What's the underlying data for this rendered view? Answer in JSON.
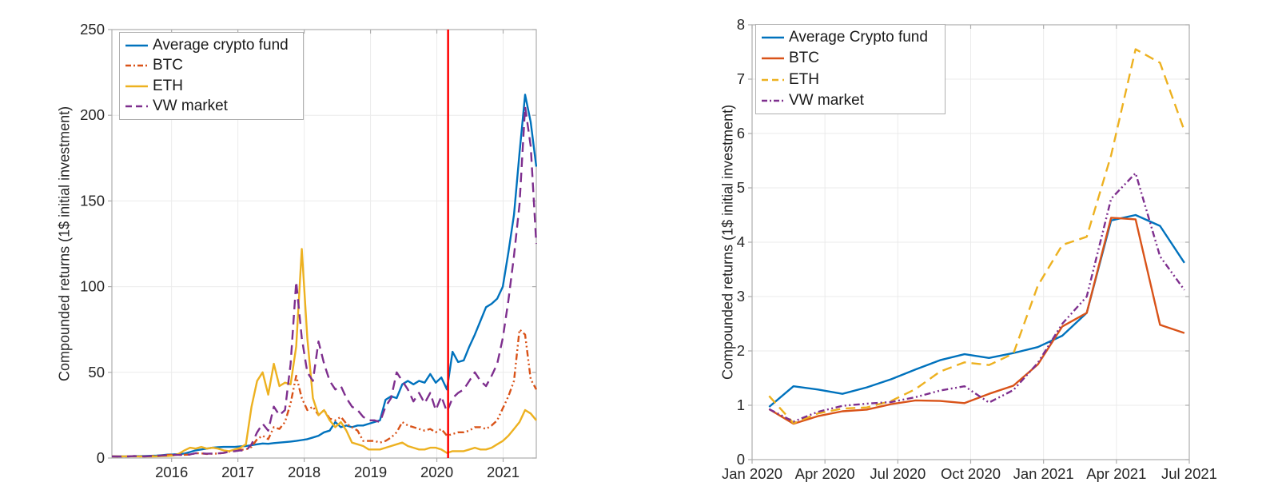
{
  "window": {
    "background": "#ffffff"
  },
  "palette": {
    "fund_blue": "#0072BD",
    "btc_orange": "#D95319",
    "eth_yellow": "#EDB120",
    "vw_purple": "#7E2F8E",
    "event_red": "#FF0000",
    "grid_gray": "#EBEBEB",
    "axis_gray": "#ADADAD",
    "text_dark": "#262626"
  },
  "chart_data": [
    {
      "id": "full-history",
      "type": "line",
      "title": "",
      "xlabel": "",
      "ylabel": "Compounded returns (1$ initial investment)",
      "xlim": [
        2015.1,
        2021.5
      ],
      "ylim": [
        0,
        250
      ],
      "grid": true,
      "legend_position": "top-left",
      "x_sampling": "monthly, Mar 2015 - Jul 2021",
      "x_start": 2015.1,
      "x_end": 2021.5,
      "x_ticks": [
        {
          "value": 2016,
          "label": "2016"
        },
        {
          "value": 2017,
          "label": "2017"
        },
        {
          "value": 2018,
          "label": "2018"
        },
        {
          "value": 2019,
          "label": "2019"
        },
        {
          "value": 2020,
          "label": "2020"
        },
        {
          "value": 2021,
          "label": "2021"
        }
      ],
      "y_ticks": [
        0,
        50,
        100,
        150,
        200,
        250
      ],
      "annotations": [
        {
          "type": "vline",
          "x": 2020.17,
          "color_key": "event_red",
          "width": 2.5
        }
      ],
      "series": [
        {
          "name": "Average crypto fund",
          "color_key": "fund_blue",
          "dash": "solid",
          "values": [
            1,
            1,
            1,
            1,
            1.1,
            1.1,
            1.2,
            1.3,
            1.4,
            1.7,
            2,
            2.1,
            2.3,
            2.6,
            3.5,
            4.5,
            5,
            5.5,
            6,
            6.3,
            6.5,
            6.5,
            6.5,
            6.8,
            7,
            7.5,
            8,
            8.5,
            8.3,
            8.7,
            9,
            9.3,
            9.6,
            10,
            10.5,
            11,
            12,
            13,
            15,
            16,
            21,
            18,
            19,
            18,
            19,
            19,
            20,
            21,
            22,
            34,
            36,
            35,
            43,
            45,
            43,
            45,
            44,
            49,
            44,
            47,
            40,
            62,
            56,
            57,
            65,
            72,
            80,
            88,
            90,
            93,
            100,
            120,
            142,
            178,
            212,
            196,
            170
          ]
        },
        {
          "name": "BTC",
          "color_key": "btc_orange",
          "dash": "dashdot",
          "values": [
            1,
            0.9,
            0.9,
            1,
            1.1,
            1,
            1,
            1.1,
            1.3,
            1.6,
            1.8,
            1.9,
            1.8,
            1.9,
            2,
            2.8,
            2.7,
            2.4,
            2.5,
            2.6,
            3,
            3.8,
            4.2,
            4.8,
            5,
            6.5,
            11,
            13,
            11,
            18,
            17,
            21,
            32,
            48,
            35,
            28,
            30,
            25,
            28,
            23,
            22,
            24,
            20,
            18,
            16,
            10,
            10,
            10,
            9,
            10,
            12,
            15,
            21,
            19,
            18,
            17,
            16,
            17,
            15,
            17,
            13,
            14,
            15,
            15,
            16,
            18,
            18,
            17,
            19,
            22,
            29,
            36,
            45,
            75,
            72,
            46,
            40
          ]
        },
        {
          "name": "ETH",
          "color_key": "eth_yellow",
          "dash": "solid",
          "values": [
            1,
            1,
            1,
            1,
            1,
            1,
            0.9,
            0.9,
            1,
            1.1,
            1.2,
            1.5,
            2.5,
            4.5,
            6,
            5.5,
            6.5,
            5.5,
            6,
            5.5,
            4.5,
            4,
            5,
            6,
            8,
            30,
            45,
            50,
            37,
            55,
            42,
            44,
            43,
            65,
            122,
            70,
            35,
            25,
            28,
            22,
            18,
            21,
            16,
            9,
            8,
            7,
            5,
            5,
            5,
            6,
            7,
            8,
            9,
            7,
            6,
            5,
            5,
            6,
            6,
            5,
            3,
            4,
            4,
            4,
            5,
            6,
            5,
            5,
            6,
            8,
            10,
            13,
            17,
            21,
            28,
            26,
            22
          ]
        },
        {
          "name": "VW market",
          "color_key": "vw_purple",
          "dash": "dashed",
          "values": [
            1,
            0.9,
            0.9,
            1,
            1.1,
            1,
            1,
            1.1,
            1.3,
            1.5,
            1.7,
            1.8,
            1.8,
            1.9,
            2.1,
            2.8,
            2.7,
            2.5,
            2.6,
            2.7,
            3,
            3.7,
            4,
            4.5,
            4.3,
            8,
            15,
            20,
            16,
            30,
            25,
            28,
            55,
            103,
            70,
            50,
            45,
            68,
            55,
            45,
            40,
            42,
            35,
            30,
            28,
            24,
            22,
            22,
            21,
            30,
            35,
            50,
            45,
            40,
            33,
            38,
            32,
            38,
            28,
            36,
            27,
            35,
            38,
            40,
            45,
            50,
            45,
            42,
            48,
            55,
            70,
            92,
            118,
            148,
            205,
            182,
            125
          ]
        }
      ]
    },
    {
      "id": "post-2020",
      "type": "line",
      "title": "",
      "xlabel": "",
      "ylabel": "Compounded returns (1$ initial investment)",
      "xlim": [
        0,
        18
      ],
      "ylim": [
        0,
        8
      ],
      "grid": true,
      "legend_position": "top-left",
      "x_sampling": "monthly, Feb 2020 - Jul 2021",
      "x_start": 0.7,
      "x_end": 17.8,
      "months": [
        "Feb 2020",
        "Mar 2020",
        "Apr 2020",
        "May 2020",
        "Jun 2020",
        "Jul 2020",
        "Aug 2020",
        "Sep 2020",
        "Oct 2020",
        "Nov 2020",
        "Dec 2020",
        "Jan 2021",
        "Feb 2021",
        "Mar 2021",
        "Apr 2021",
        "May 2021",
        "Jun 2021",
        "Jul 2021"
      ],
      "x_ticks": [
        {
          "value": 0,
          "label": "Jan 2020"
        },
        {
          "value": 3,
          "label": "Apr 2020"
        },
        {
          "value": 6,
          "label": "Jul 2020"
        },
        {
          "value": 9,
          "label": "Oct 2020"
        },
        {
          "value": 12,
          "label": "Jan 2021"
        },
        {
          "value": 15,
          "label": "Apr 2021"
        },
        {
          "value": 18,
          "label": "Jul 2021"
        }
      ],
      "y_ticks": [
        0,
        1,
        2,
        3,
        4,
        5,
        6,
        7,
        8
      ],
      "annotations": [],
      "series": [
        {
          "name": "Average Crypto fund",
          "color_key": "fund_blue",
          "dash": "solid",
          "values": [
            0.97,
            1.35,
            1.29,
            1.21,
            1.33,
            1.48,
            1.66,
            1.83,
            1.94,
            1.87,
            1.96,
            2.07,
            2.28,
            2.7,
            4.4,
            4.5,
            4.3,
            3.62
          ]
        },
        {
          "name": "BTC",
          "color_key": "btc_orange",
          "dash": "solid",
          "values": [
            0.93,
            0.66,
            0.8,
            0.89,
            0.92,
            1.02,
            1.09,
            1.08,
            1.04,
            1.21,
            1.36,
            1.75,
            2.45,
            2.7,
            4.45,
            4.42,
            2.48,
            2.33
          ]
        },
        {
          "name": "ETH",
          "color_key": "eth_yellow",
          "dash": "dashed",
          "values": [
            1.17,
            0.67,
            0.85,
            0.94,
            0.96,
            1.08,
            1.3,
            1.62,
            1.79,
            1.74,
            1.95,
            3.2,
            3.95,
            4.1,
            5.6,
            7.55,
            7.3,
            6.05
          ]
        },
        {
          "name": "VW market",
          "color_key": "vw_purple",
          "dash": "dashdot",
          "values": [
            0.93,
            0.7,
            0.88,
            0.99,
            1.03,
            1.06,
            1.15,
            1.27,
            1.35,
            1.05,
            1.28,
            1.78,
            2.5,
            3.0,
            4.8,
            5.27,
            3.74,
            3.12
          ]
        }
      ]
    }
  ]
}
